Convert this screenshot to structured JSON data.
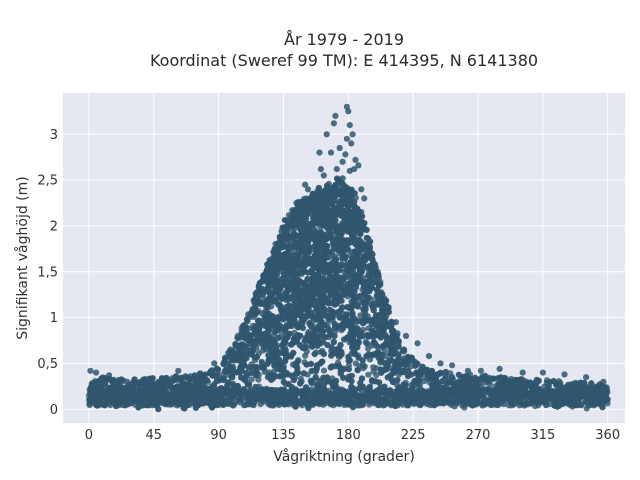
{
  "chart_data": {
    "type": "scatter",
    "title": [
      "År 1979 - 2019",
      "Koordinat (Sweref 99 TM): E 414395, N 6141380"
    ],
    "xlabel": "Vågriktning (grader)",
    "ylabel": "Signifikant våghöjd (m)",
    "xlim": [
      -18,
      372
    ],
    "ylim": [
      -0.15,
      3.45
    ],
    "xticks": [
      0,
      45,
      90,
      135,
      180,
      225,
      270,
      315,
      360
    ],
    "xtick_labels": [
      "0",
      "45",
      "90",
      "135",
      "180",
      "225",
      "270",
      "315",
      "360"
    ],
    "yticks": [
      0,
      0.5,
      1,
      1.5,
      2,
      2.5,
      3
    ],
    "ytick_labels": [
      "0",
      "0,5",
      "1",
      "1,5",
      "2",
      "2,5",
      "3"
    ],
    "grid": true,
    "legend": "none",
    "marker_color": "#2f566e",
    "background_color": "#e5e8f0",
    "envelope": [
      [
        0,
        0.3
      ],
      [
        10,
        0.35
      ],
      [
        20,
        0.32
      ],
      [
        30,
        0.33
      ],
      [
        40,
        0.35
      ],
      [
        50,
        0.34
      ],
      [
        60,
        0.36
      ],
      [
        70,
        0.36
      ],
      [
        80,
        0.4
      ],
      [
        90,
        0.48
      ],
      [
        95,
        0.6
      ],
      [
        100,
        0.7
      ],
      [
        105,
        0.85
      ],
      [
        110,
        1.05
      ],
      [
        115,
        1.25
      ],
      [
        120,
        1.45
      ],
      [
        125,
        1.65
      ],
      [
        130,
        1.85
      ],
      [
        135,
        2.0
      ],
      [
        140,
        2.15
      ],
      [
        145,
        2.25
      ],
      [
        150,
        2.35
      ],
      [
        155,
        2.35
      ],
      [
        160,
        2.4
      ],
      [
        165,
        2.42
      ],
      [
        170,
        2.45
      ],
      [
        175,
        2.5
      ],
      [
        180,
        2.45
      ],
      [
        185,
        2.35
      ],
      [
        190,
        2.1
      ],
      [
        195,
        1.85
      ],
      [
        200,
        1.55
      ],
      [
        205,
        1.25
      ],
      [
        210,
        1.0
      ],
      [
        215,
        0.8
      ],
      [
        220,
        0.65
      ],
      [
        225,
        0.55
      ],
      [
        230,
        0.48
      ],
      [
        240,
        0.42
      ],
      [
        250,
        0.4
      ],
      [
        260,
        0.38
      ],
      [
        270,
        0.38
      ],
      [
        280,
        0.36
      ],
      [
        290,
        0.34
      ],
      [
        300,
        0.33
      ],
      [
        310,
        0.32
      ],
      [
        320,
        0.31
      ],
      [
        330,
        0.3
      ],
      [
        340,
        0.3
      ],
      [
        350,
        0.29
      ],
      [
        360,
        0.28
      ]
    ],
    "outliers": [
      [
        179,
        3.3
      ],
      [
        180,
        3.25
      ],
      [
        171,
        3.2
      ],
      [
        170,
        3.12
      ],
      [
        181,
        3.1
      ],
      [
        183,
        3.0
      ],
      [
        165,
        3.0
      ],
      [
        179,
        2.95
      ],
      [
        182,
        2.9
      ],
      [
        174,
        2.85
      ],
      [
        168,
        2.8
      ],
      [
        160,
        2.8
      ],
      [
        178,
        2.78
      ],
      [
        185,
        2.72
      ],
      [
        176,
        2.7
      ],
      [
        187,
        2.66
      ],
      [
        172,
        2.62
      ],
      [
        181,
        2.6
      ],
      [
        163,
        2.55
      ],
      [
        176,
        2.52
      ],
      [
        150,
        2.45
      ],
      [
        152,
        2.4
      ],
      [
        144,
        2.25
      ],
      [
        191,
        2.3
      ],
      [
        189,
        2.4
      ],
      [
        161,
        2.62
      ],
      [
        184,
        2.62
      ],
      [
        1,
        0.42
      ],
      [
        5,
        0.4
      ],
      [
        14,
        0.37
      ],
      [
        62,
        0.42
      ],
      [
        87,
        0.5
      ],
      [
        94,
        0.52
      ],
      [
        103,
        0.78
      ],
      [
        228,
        0.72
      ],
      [
        236,
        0.58
      ],
      [
        244,
        0.5
      ],
      [
        252,
        0.48
      ],
      [
        263,
        0.42
      ],
      [
        272,
        0.42
      ],
      [
        285,
        0.44
      ],
      [
        301,
        0.4
      ],
      [
        315,
        0.4
      ],
      [
        330,
        0.38
      ],
      [
        345,
        0.35
      ],
      [
        357,
        0.3
      ],
      [
        110,
        0.96
      ],
      [
        220,
        0.8
      ],
      [
        213,
        0.95
      ]
    ]
  }
}
